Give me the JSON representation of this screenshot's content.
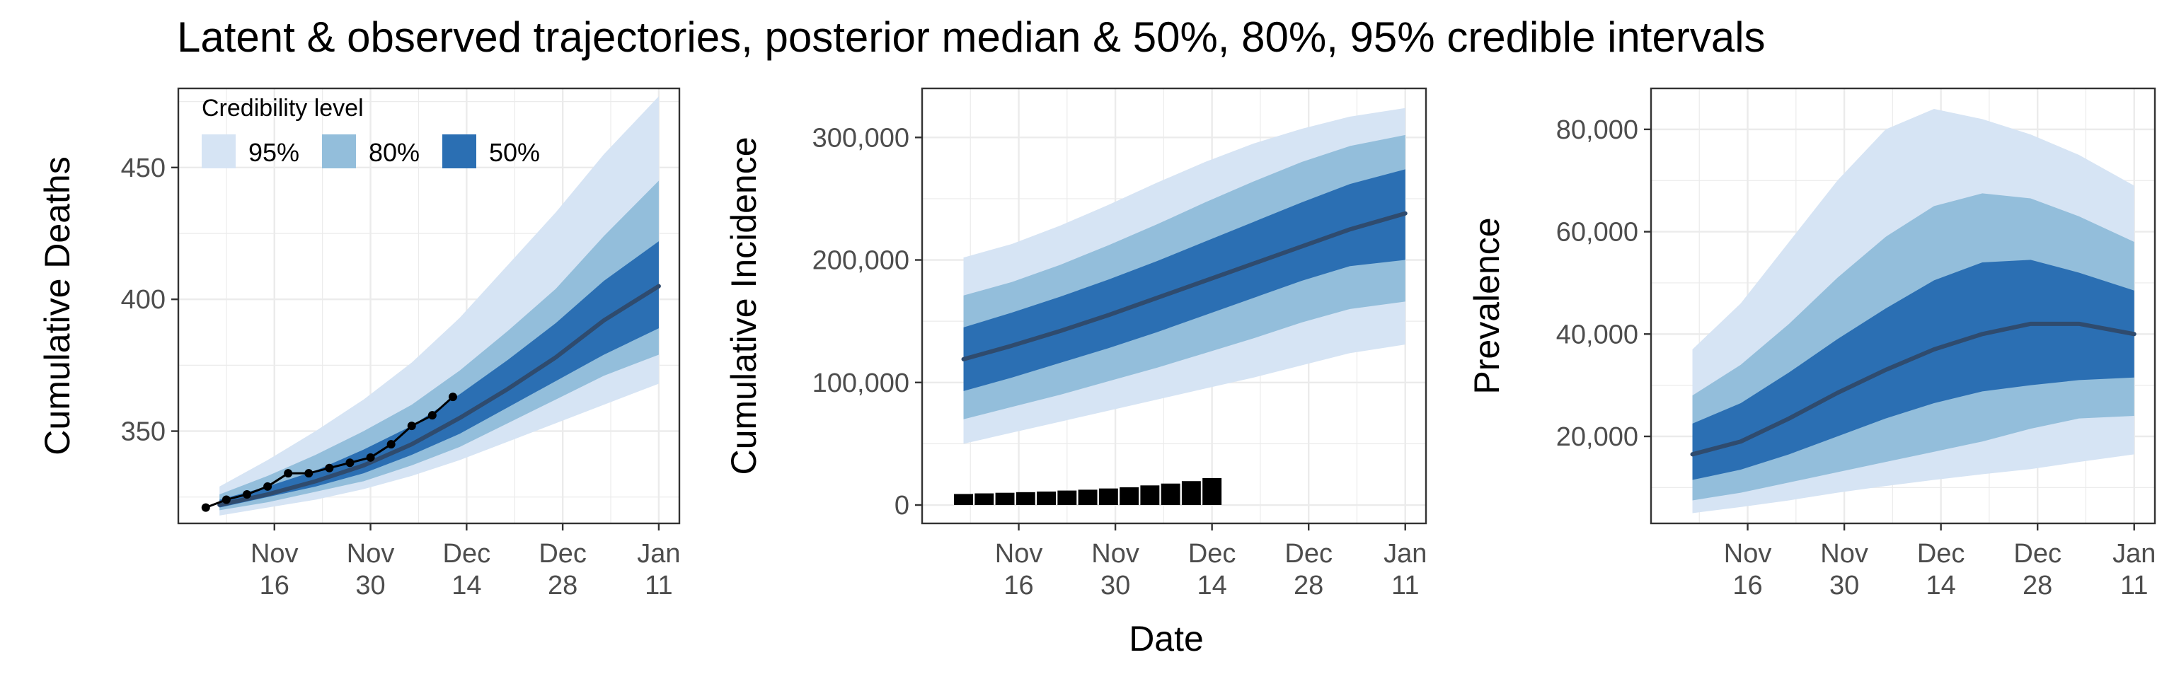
{
  "title": "Latent & observed trajectories, posterior median & 50%, 80%, 95% credible intervals",
  "x_label": "Date",
  "x_tick_labels": [
    [
      "Nov",
      "16"
    ],
    [
      "Nov",
      "30"
    ],
    [
      "Dec",
      "14"
    ],
    [
      "Dec",
      "28"
    ],
    [
      "Jan",
      "11"
    ]
  ],
  "legend": {
    "title": "Credibility level",
    "items": [
      {
        "label": "95%",
        "color": "#d6e4f4"
      },
      {
        "label": "80%",
        "color": "#93bedb"
      },
      {
        "label": "50%",
        "color": "#2b6fb3"
      }
    ]
  },
  "colors": {
    "band95": "#d6e4f4",
    "band80": "#93bedb",
    "band50": "#2b6fb3",
    "median": "#2f4b6e",
    "observed": "#000000",
    "grid": "#ebebeb",
    "frame": "#333333",
    "tick_text": "#4d4d4d"
  },
  "chart_data": [
    {
      "type": "area",
      "ylabel": "Cumulative Deaths",
      "x_axis": {
        "type": "date",
        "range": [
          "2020-11-02",
          "2021-01-14"
        ],
        "ticks": [
          "2020-11-16",
          "2020-11-30",
          "2020-12-14",
          "2020-12-28",
          "2021-01-11"
        ]
      },
      "ylim": [
        315,
        480
      ],
      "y_ticks": [
        350,
        400,
        450
      ],
      "grid": true,
      "legend_position": "top-left",
      "x": [
        "2020-11-08",
        "2020-11-15",
        "2020-11-22",
        "2020-11-29",
        "2020-12-06",
        "2020-12-13",
        "2020-12-20",
        "2020-12-27",
        "2021-01-03",
        "2021-01-11"
      ],
      "median": [
        322,
        326,
        331,
        337,
        345,
        355,
        366,
        378,
        392,
        405
      ],
      "lower_95": [
        318,
        321,
        324,
        328,
        333,
        339,
        346,
        353,
        360,
        368
      ],
      "upper_95": [
        329,
        339,
        350,
        362,
        376,
        393,
        413,
        433,
        455,
        477
      ],
      "lower_80": [
        320,
        323,
        327,
        331,
        337,
        344,
        353,
        362,
        371,
        379
      ],
      "upper_80": [
        326,
        333,
        341,
        350,
        360,
        373,
        388,
        404,
        424,
        445
      ],
      "lower_50": [
        321,
        325,
        329,
        334,
        341,
        349,
        359,
        369,
        379,
        389
      ],
      "upper_50": [
        324,
        329,
        335,
        343,
        352,
        364,
        377,
        391,
        407,
        422
      ],
      "observed": {
        "x": [
          "2020-11-06",
          "2020-11-09",
          "2020-11-12",
          "2020-11-15",
          "2020-11-18",
          "2020-11-21",
          "2020-11-24",
          "2020-11-27",
          "2020-11-30",
          "2020-12-03",
          "2020-12-06",
          "2020-12-09",
          "2020-12-12"
        ],
        "y": [
          321,
          324,
          326,
          329,
          334,
          334,
          336,
          338,
          340,
          345,
          352,
          356,
          363
        ]
      }
    },
    {
      "type": "area",
      "ylabel": "Cumulative Incidence",
      "x_axis": {
        "type": "date",
        "range": [
          "2020-11-02",
          "2021-01-14"
        ],
        "ticks": [
          "2020-11-16",
          "2020-11-30",
          "2020-12-14",
          "2020-12-28",
          "2021-01-11"
        ]
      },
      "ylim": [
        -15000,
        340000
      ],
      "y_ticks": [
        0,
        100000,
        200000,
        300000
      ],
      "y_tick_labels": [
        "0",
        "100,000",
        "200,000",
        "300,000"
      ],
      "grid": true,
      "x": [
        "2020-11-08",
        "2020-11-15",
        "2020-11-22",
        "2020-11-29",
        "2020-12-06",
        "2020-12-13",
        "2020-12-20",
        "2020-12-27",
        "2021-01-03",
        "2021-01-11"
      ],
      "median": [
        119000,
        130000,
        142000,
        155000,
        169000,
        183000,
        197000,
        211000,
        225000,
        238000
      ],
      "lower_95": [
        50000,
        59000,
        68000,
        77000,
        86000,
        95000,
        104000,
        114000,
        124000,
        131000
      ],
      "upper_95": [
        202000,
        213000,
        228000,
        245000,
        263000,
        280000,
        295000,
        307000,
        317000,
        324000
      ],
      "lower_80": [
        70000,
        80000,
        90000,
        101000,
        112000,
        124000,
        136000,
        149000,
        160000,
        166000
      ],
      "upper_80": [
        171000,
        182000,
        196000,
        212000,
        229000,
        247000,
        264000,
        280000,
        293000,
        302000
      ],
      "lower_50": [
        93000,
        104000,
        116000,
        128000,
        141000,
        155000,
        169000,
        183000,
        195000,
        200000
      ],
      "upper_50": [
        145000,
        157000,
        170000,
        184000,
        199000,
        215000,
        231000,
        247000,
        262000,
        274000
      ],
      "observed_bars": {
        "x": [
          "2020-11-08",
          "2020-11-11",
          "2020-11-14",
          "2020-11-17",
          "2020-11-20",
          "2020-11-23",
          "2020-11-26",
          "2020-11-29",
          "2020-12-02",
          "2020-12-05",
          "2020-12-08",
          "2020-12-11",
          "2020-12-14"
        ],
        "y": [
          9000,
          9500,
          10000,
          10500,
          11000,
          11800,
          12500,
          13500,
          14500,
          16000,
          17500,
          19500,
          22000
        ]
      }
    },
    {
      "type": "area",
      "ylabel": "Prevalence",
      "x_axis": {
        "type": "date",
        "range": [
          "2020-11-02",
          "2021-01-14"
        ],
        "ticks": [
          "2020-11-16",
          "2020-11-30",
          "2020-12-14",
          "2020-12-28",
          "2021-01-11"
        ]
      },
      "ylim": [
        3000,
        88000
      ],
      "y_ticks": [
        20000,
        40000,
        60000,
        80000
      ],
      "y_tick_labels": [
        "20,000",
        "40,000",
        "60,000",
        "80,000"
      ],
      "grid": true,
      "x": [
        "2020-11-08",
        "2020-11-15",
        "2020-11-22",
        "2020-11-29",
        "2020-12-06",
        "2020-12-13",
        "2020-12-20",
        "2020-12-27",
        "2021-01-03",
        "2021-01-11"
      ],
      "median": [
        16500,
        19000,
        23500,
        28500,
        33000,
        37000,
        40000,
        42000,
        42000,
        40000
      ],
      "lower_95": [
        5000,
        6200,
        7500,
        9000,
        10300,
        11500,
        12600,
        13600,
        15000,
        16500
      ],
      "upper_95": [
        37000,
        46000,
        58000,
        70000,
        80000,
        84000,
        82000,
        79000,
        75000,
        69000
      ],
      "lower_80": [
        7500,
        9000,
        11000,
        13000,
        15000,
        17000,
        19000,
        21500,
        23500,
        24000
      ],
      "upper_80": [
        28000,
        34000,
        42000,
        51000,
        59000,
        65000,
        67500,
        66500,
        63000,
        58000
      ],
      "lower_50": [
        11500,
        13500,
        16500,
        20000,
        23500,
        26500,
        28800,
        30000,
        31000,
        31500
      ],
      "upper_50": [
        22500,
        26500,
        32500,
        39000,
        45000,
        50500,
        54000,
        54500,
        52000,
        48500
      ]
    }
  ]
}
